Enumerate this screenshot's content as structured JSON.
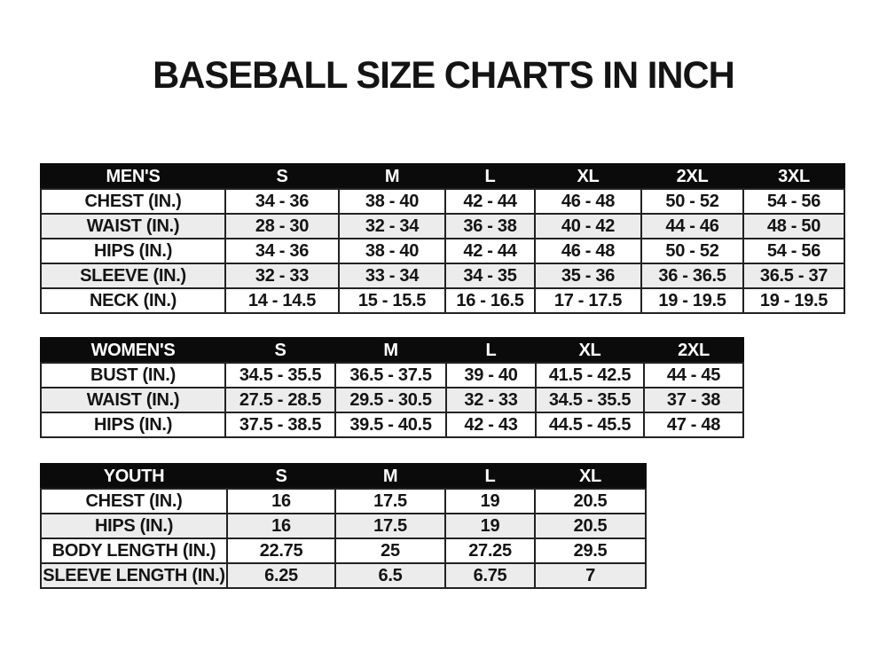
{
  "title": "BASEBALL SIZE CHARTS IN INCH",
  "colors": {
    "background": "#ffffff",
    "header_bg": "#0b0b0b",
    "header_text": "#ffffff",
    "row_bg": "#ffffff",
    "row_alt_bg": "#ececec",
    "border": "#222222",
    "text": "#141414"
  },
  "chart_data": [
    {
      "type": "table",
      "name": "mens",
      "title": "MEN'S",
      "columns": [
        "MEN'S",
        "S",
        "M",
        "L",
        "XL",
        "2XL",
        "3XL"
      ],
      "rows": [
        [
          "CHEST (IN.)",
          "34 - 36",
          "38 - 40",
          "42 - 44",
          "46 - 48",
          "50 - 52",
          "54 - 56"
        ],
        [
          "WAIST (IN.)",
          "28 - 30",
          "32 - 34",
          "36 - 38",
          "40 - 42",
          "44 - 46",
          "48 - 50"
        ],
        [
          "HIPS (IN.)",
          "34 - 36",
          "38 - 40",
          "42 - 44",
          "46 - 48",
          "50 - 52",
          "54 - 56"
        ],
        [
          "SLEEVE (IN.)",
          "32 - 33",
          "33 - 34",
          "34 - 35",
          "35 - 36",
          "36 - 36.5",
          "36.5 - 37"
        ],
        [
          "NECK (IN.)",
          "14 - 14.5",
          "15 - 15.5",
          "16 - 16.5",
          "17 - 17.5",
          "19 - 19.5",
          "19 - 19.5"
        ]
      ]
    },
    {
      "type": "table",
      "name": "womens",
      "title": "WOMEN'S",
      "columns": [
        "WOMEN'S",
        "S",
        "M",
        "L",
        "XL",
        "2XL"
      ],
      "rows": [
        [
          "BUST (IN.)",
          "34.5 - 35.5",
          "36.5 - 37.5",
          "39 - 40",
          "41.5 - 42.5",
          "44 - 45"
        ],
        [
          "WAIST (IN.)",
          "27.5 - 28.5",
          "29.5 - 30.5",
          "32 - 33",
          "34.5 - 35.5",
          "37 - 38"
        ],
        [
          "HIPS (IN.)",
          "37.5 - 38.5",
          "39.5 - 40.5",
          "42 - 43",
          "44.5 - 45.5",
          "47 - 48"
        ]
      ]
    },
    {
      "type": "table",
      "name": "youth",
      "title": "YOUTH",
      "columns": [
        "YOUTH",
        "S",
        "M",
        "L",
        "XL"
      ],
      "rows": [
        [
          "CHEST (IN.)",
          "16",
          "17.5",
          "19",
          "20.5"
        ],
        [
          "HIPS (IN.)",
          "16",
          "17.5",
          "19",
          "20.5"
        ],
        [
          "BODY LENGTH (IN.)",
          "22.75",
          "25",
          "27.25",
          "29.5"
        ],
        [
          "SLEEVE LENGTH (IN.)",
          "6.25",
          "6.5",
          "6.75",
          "7"
        ]
      ]
    }
  ]
}
